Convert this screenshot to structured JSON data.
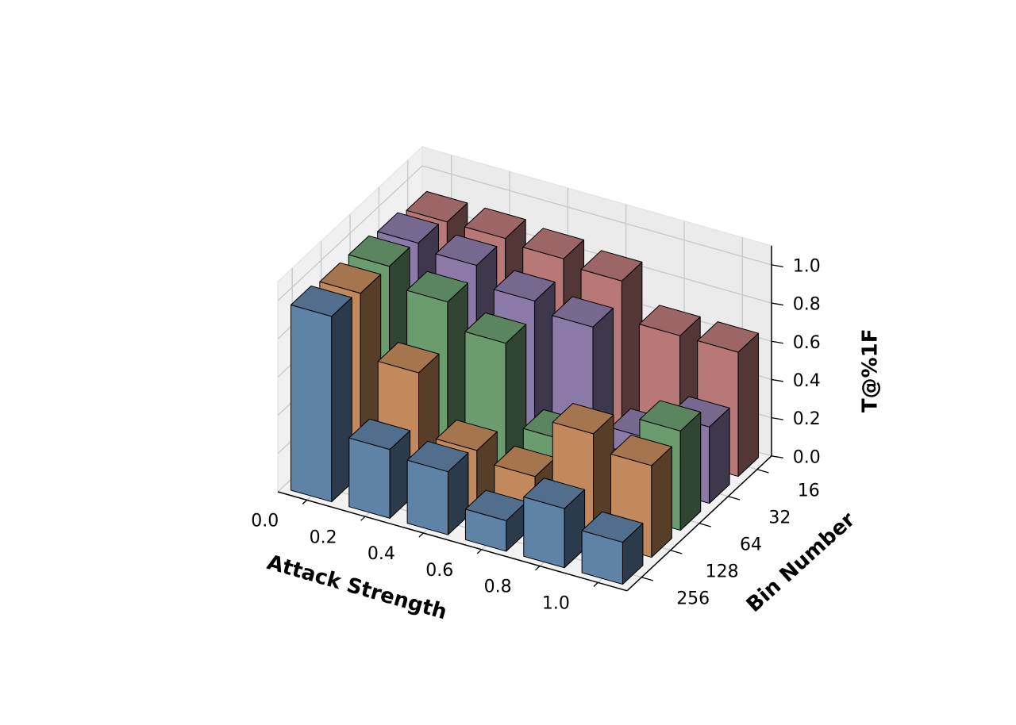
{
  "chart_data": {
    "type": "bar3d",
    "x_label": "Attack Strength",
    "y_label": "Bin Number",
    "z_label": "T@%1F",
    "categories": [
      "0.0",
      "0.2",
      "0.4",
      "0.6",
      "0.8",
      "1.0"
    ],
    "series": [
      {
        "name": "16",
        "color": "#b87878",
        "values": [
          0.9,
          0.9,
          0.88,
          0.85,
          0.65,
          0.65
        ]
      },
      {
        "name": "32",
        "color": "#8b7aa8",
        "values": [
          0.93,
          0.9,
          0.8,
          0.75,
          0.25,
          0.4
        ]
      },
      {
        "name": "64",
        "color": "#6b9c6e",
        "values": [
          0.95,
          0.85,
          0.72,
          0.3,
          0.2,
          0.52
        ]
      },
      {
        "name": "128",
        "color": "#c28a5c",
        "values": [
          0.95,
          0.62,
          0.3,
          0.25,
          0.56,
          0.48
        ]
      },
      {
        "name": "256",
        "color": "#5f83a6",
        "values": [
          0.97,
          0.36,
          0.33,
          0.16,
          0.31,
          0.22
        ]
      }
    ],
    "zlim": [
      0,
      1.1
    ],
    "zticks": [
      {
        "value": 0,
        "label": "0.0"
      },
      {
        "value": 0.2,
        "label": "0.2"
      },
      {
        "value": 0.4,
        "label": "0.4"
      },
      {
        "value": 0.6,
        "label": "0.6"
      },
      {
        "value": 0.8,
        "label": "0.8"
      },
      {
        "value": 1,
        "label": "1.0"
      }
    ],
    "grid": true
  }
}
